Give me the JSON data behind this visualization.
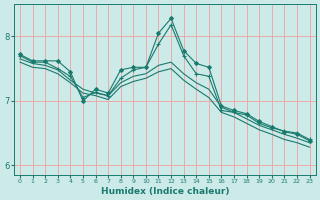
{
  "xlabel": "Humidex (Indice chaleur)",
  "xlim": [
    -0.5,
    23.5
  ],
  "ylim": [
    5.85,
    8.5
  ],
  "yticks": [
    6,
    7,
    8
  ],
  "xticks": [
    0,
    1,
    2,
    3,
    4,
    5,
    6,
    7,
    8,
    9,
    10,
    11,
    12,
    13,
    14,
    15,
    16,
    17,
    18,
    19,
    20,
    21,
    22,
    23
  ],
  "bg_color": "#cceae8",
  "grid_color": "#f0a0a0",
  "line_color": "#1a7a6e",
  "series": [
    {
      "x": [
        0,
        1,
        2,
        3,
        4,
        5,
        6,
        7,
        8,
        9,
        10,
        11,
        12,
        13,
        14,
        15,
        16,
        17,
        18,
        19,
        20,
        21,
        22,
        23
      ],
      "y": [
        7.72,
        7.62,
        7.62,
        7.62,
        7.45,
        7.0,
        7.18,
        7.12,
        7.48,
        7.52,
        7.52,
        8.05,
        8.28,
        7.78,
        7.58,
        7.52,
        6.92,
        6.85,
        6.8,
        6.68,
        6.6,
        6.52,
        6.48,
        6.38
      ],
      "marker": "D",
      "markersize": 2.0
    },
    {
      "x": [
        0,
        1,
        2,
        3,
        4,
        5,
        6,
        7,
        8,
        9,
        10,
        11,
        12,
        13,
        14,
        15,
        16,
        17,
        18,
        19,
        20,
        21,
        22,
        23
      ],
      "y": [
        7.7,
        7.6,
        7.6,
        7.5,
        7.38,
        7.05,
        7.13,
        7.08,
        7.35,
        7.48,
        7.52,
        7.88,
        8.18,
        7.7,
        7.42,
        7.38,
        6.85,
        6.82,
        6.78,
        6.65,
        6.58,
        6.53,
        6.5,
        6.4
      ],
      "marker": "+",
      "markersize": 3.5
    },
    {
      "x": [
        0,
        1,
        2,
        3,
        4,
        5,
        6,
        7,
        8,
        9,
        10,
        11,
        12,
        13,
        14,
        15,
        16,
        17,
        18,
        19,
        20,
        21,
        22,
        23
      ],
      "y": [
        7.65,
        7.58,
        7.55,
        7.48,
        7.32,
        7.18,
        7.12,
        7.08,
        7.28,
        7.38,
        7.42,
        7.55,
        7.6,
        7.42,
        7.28,
        7.18,
        6.9,
        6.82,
        6.72,
        6.62,
        6.55,
        6.48,
        6.42,
        6.35
      ],
      "marker": null,
      "markersize": 0
    },
    {
      "x": [
        0,
        1,
        2,
        3,
        4,
        5,
        6,
        7,
        8,
        9,
        10,
        11,
        12,
        13,
        14,
        15,
        16,
        17,
        18,
        19,
        20,
        21,
        22,
        23
      ],
      "y": [
        7.6,
        7.52,
        7.5,
        7.42,
        7.28,
        7.12,
        7.08,
        7.02,
        7.22,
        7.3,
        7.35,
        7.45,
        7.5,
        7.32,
        7.18,
        7.05,
        6.82,
        6.75,
        6.65,
        6.55,
        6.48,
        6.4,
        6.35,
        6.28
      ],
      "marker": null,
      "markersize": 0
    }
  ]
}
